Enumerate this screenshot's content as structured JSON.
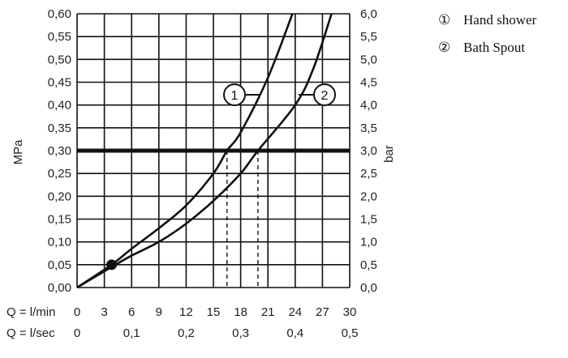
{
  "chart_data": {
    "type": "line",
    "ylabel_left": "MPa",
    "ylabel_right": "bar",
    "xaxis_rows": [
      {
        "label": "Q = l/min",
        "ticks": [
          "0",
          "3",
          "6",
          "9",
          "12",
          "15",
          "18",
          "21",
          "24",
          "27",
          "30"
        ]
      },
      {
        "label": "Q = l/sec",
        "ticks": [
          "0",
          "0,1",
          "0,2",
          "0,3",
          "0,4",
          "0,5"
        ]
      }
    ],
    "xlim": [
      0,
      30
    ],
    "ylim": [
      0,
      0.6
    ],
    "y_ticks_left": [
      "0,00",
      "0,05",
      "0,10",
      "0,15",
      "0,20",
      "0,25",
      "0,30",
      "0,35",
      "0,40",
      "0,45",
      "0,50",
      "0,55",
      "0,60"
    ],
    "y_ticks_right": [
      "0,0",
      "0,5",
      "1,0",
      "1,5",
      "2,0",
      "2,5",
      "3,0",
      "3,5",
      "4,0",
      "4,5",
      "5,0",
      "5,5",
      "6,0"
    ],
    "grid": true,
    "reference_line": {
      "y": 0.3
    },
    "operating_point": {
      "x": 3.8,
      "y": 0.05
    },
    "series": [
      {
        "name": "Hand shower",
        "marker": "1",
        "x": [
          0,
          3.8,
          6,
          9,
          12,
          15,
          16.5,
          18,
          21,
          23.7
        ],
        "y": [
          0,
          0.05,
          0.085,
          0.13,
          0.18,
          0.25,
          0.3,
          0.34,
          0.46,
          0.6
        ]
      },
      {
        "name": "Bath Spout",
        "marker": "2",
        "x": [
          0,
          3.8,
          6,
          9,
          12,
          15,
          18,
          19.9,
          24,
          26,
          28
        ],
        "y": [
          0,
          0.045,
          0.07,
          0.1,
          0.14,
          0.19,
          0.25,
          0.3,
          0.4,
          0.48,
          0.6
        ]
      }
    ],
    "legend": {
      "position": "top-right",
      "items": [
        {
          "symbol": "①",
          "label": "Hand shower"
        },
        {
          "symbol": "②",
          "label": "Bath Spout"
        }
      ]
    }
  }
}
